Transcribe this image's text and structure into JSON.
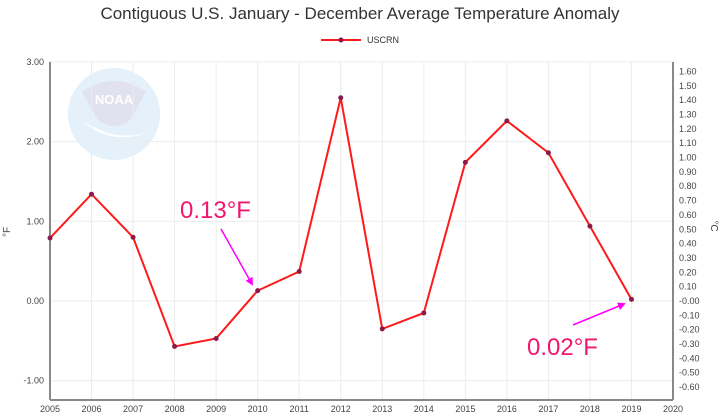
{
  "chart": {
    "title": "Contiguous U.S. January - December Average Temperature Anomaly",
    "legend": [
      {
        "label": "USCRN",
        "color": "#ff1a1a",
        "marker_color": "#8b1a4a"
      }
    ],
    "left_axis_label": "°F",
    "right_axis_label": "°C",
    "annotations": [
      {
        "text": "0.13°F",
        "year": 2010
      },
      {
        "text": "0.02°F",
        "year": 2019
      }
    ],
    "colors": {
      "line": "#ff1a1a",
      "marker": "#8b1a4a",
      "annotation_text": "#f0166e",
      "arrow": "#ff00ff",
      "grid": "#ececec",
      "axis": "#888888"
    }
  },
  "chart_data": {
    "type": "line",
    "title": "Contiguous U.S. January - December Average Temperature Anomaly",
    "xlabel": "",
    "ylabel": "°F",
    "y2label": "°C",
    "x": [
      2005,
      2006,
      2007,
      2008,
      2009,
      2010,
      2011,
      2012,
      2013,
      2014,
      2015,
      2016,
      2017,
      2018,
      2019
    ],
    "series": [
      {
        "name": "USCRN",
        "values": [
          0.79,
          1.34,
          0.8,
          -0.57,
          -0.47,
          0.13,
          0.37,
          2.55,
          -0.35,
          -0.15,
          1.74,
          2.26,
          1.86,
          0.94,
          0.02
        ]
      }
    ],
    "xlim": [
      2005,
      2020
    ],
    "ylim": [
      -1.23,
      3.0
    ],
    "y2lim": [
      -0.68,
      1.67
    ],
    "x_ticks": [
      "2005",
      "2006",
      "2007",
      "2008",
      "2009",
      "2010",
      "2011",
      "2012",
      "2013",
      "2014",
      "2015",
      "2016",
      "2017",
      "2018",
      "2019",
      "2020"
    ],
    "y_ticks": [
      "3.00",
      "2.00",
      "1.00",
      "0.00",
      "-1.00"
    ],
    "y2_ticks": [
      "1.60",
      "1.50",
      "1.40",
      "1.30",
      "1.20",
      "1.10",
      "1.00",
      "0.90",
      "0.80",
      "0.70",
      "0.60",
      "0.50",
      "0.40",
      "0.30",
      "0.20",
      "0.10",
      "-0.00",
      "-0.10",
      "-0.20",
      "-0.30",
      "-0.40",
      "-0.50",
      "-0.60"
    ],
    "grid": true,
    "legend_position": "top",
    "annotations": [
      {
        "text": "0.13°F",
        "x": 2010,
        "y": 0.13
      },
      {
        "text": "0.02°F",
        "x": 2019,
        "y": 0.02
      }
    ]
  }
}
